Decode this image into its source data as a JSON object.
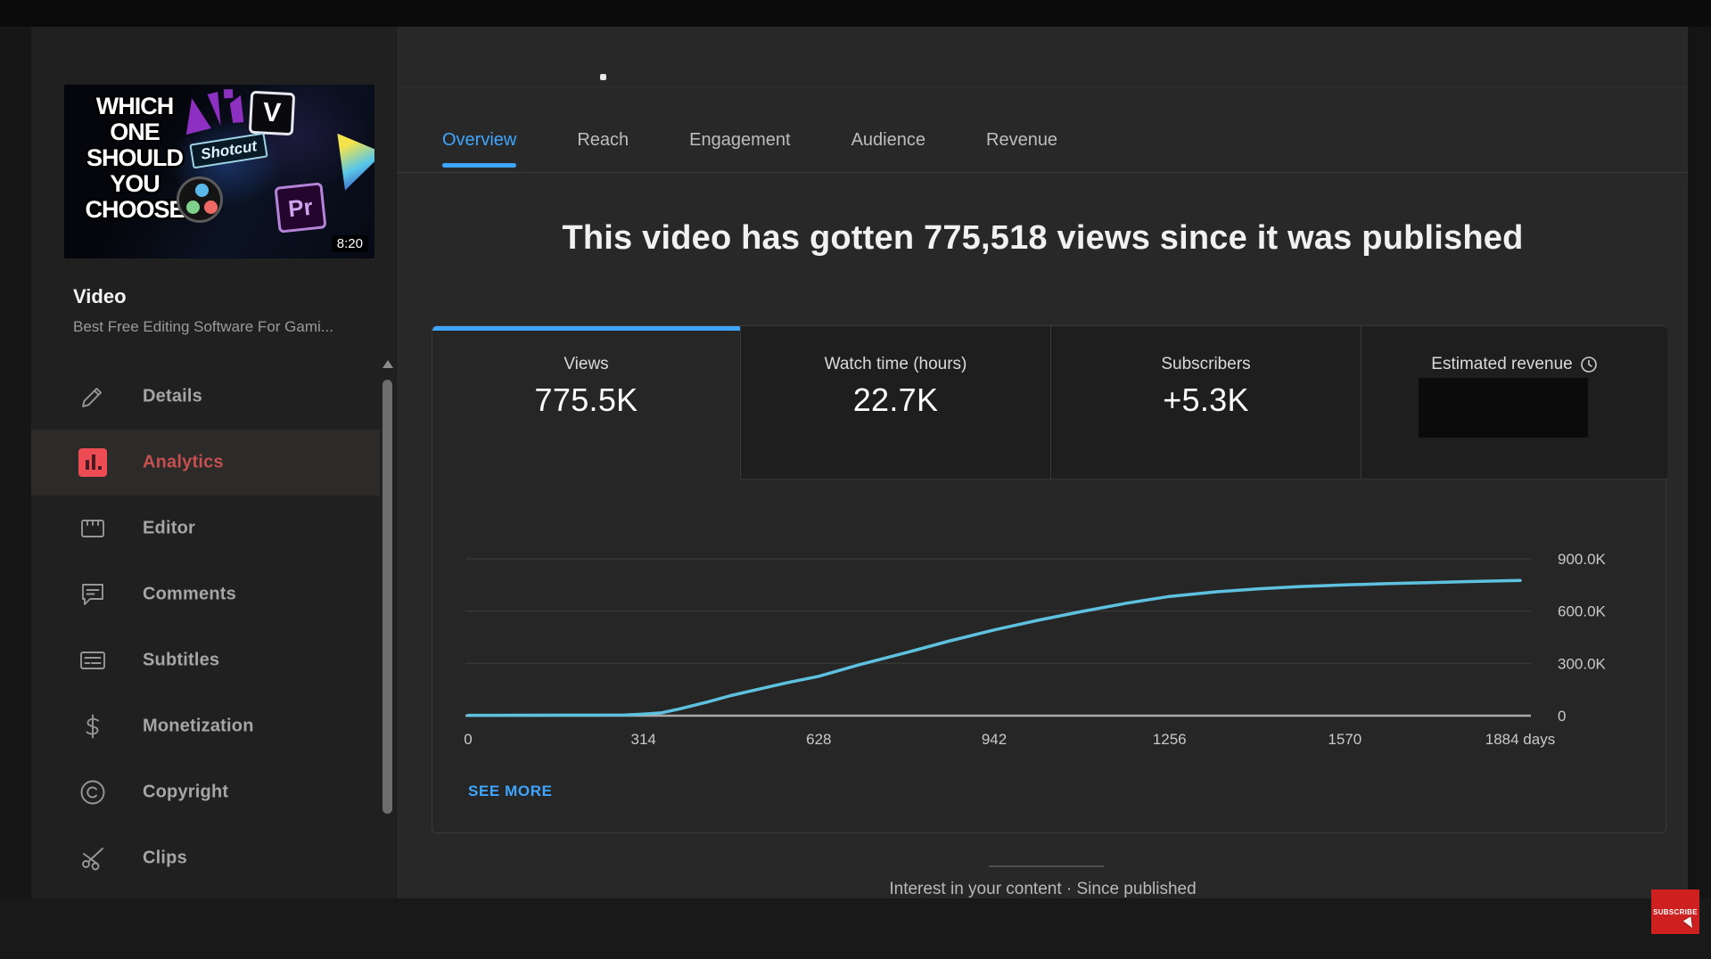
{
  "colors": {
    "accent_blue": "#3ea6ff",
    "chart_line": "#5ec1e0",
    "analytics_icon_red": "#ee4c55",
    "active_item_red": "#c4504f",
    "subscribe_red": "#cf2020",
    "panel_bg": "#262626",
    "main_bg": "#282828",
    "sidebar_bg": "#212020"
  },
  "sidebar": {
    "thumbnail": {
      "text_lines": [
        "WHICH",
        "ONE",
        "SHOULD",
        "YOU",
        "CHOOSE"
      ],
      "shotcut_label": "Shotcut",
      "v_logo_label": "V",
      "premiere_label": "Pr",
      "duration": "8:20"
    },
    "section_label": "Video",
    "video_title": "Best Free Editing Software For Gami...",
    "items": [
      {
        "label": "Details",
        "icon": "pencil-icon",
        "active": false
      },
      {
        "label": "Analytics",
        "icon": "analytics-icon",
        "active": true
      },
      {
        "label": "Editor",
        "icon": "editor-icon",
        "active": false
      },
      {
        "label": "Comments",
        "icon": "comments-icon",
        "active": false
      },
      {
        "label": "Subtitles",
        "icon": "subtitles-icon",
        "active": false
      },
      {
        "label": "Monetization",
        "icon": "monetization-icon",
        "active": false
      },
      {
        "label": "Copyright",
        "icon": "copyright-icon",
        "active": false
      },
      {
        "label": "Clips",
        "icon": "clips-icon",
        "active": false
      }
    ]
  },
  "main": {
    "tabs": [
      {
        "label": "Overview",
        "active": true
      },
      {
        "label": "Reach",
        "active": false
      },
      {
        "label": "Engagement",
        "active": false
      },
      {
        "label": "Audience",
        "active": false
      },
      {
        "label": "Revenue",
        "active": false
      }
    ],
    "headline": "This video has gotten 775,518 views since it was published",
    "metric_cards": [
      {
        "label": "Views",
        "value": "775.5K",
        "selected": true,
        "redacted": false
      },
      {
        "label": "Watch time (hours)",
        "value": "22.7K",
        "selected": false,
        "redacted": false
      },
      {
        "label": "Subscribers",
        "value": "+5.3K",
        "selected": false,
        "redacted": false
      },
      {
        "label": "Estimated revenue",
        "value": "",
        "selected": false,
        "redacted": true,
        "icon": "clock-icon"
      }
    ],
    "see_more_label": "SEE MORE",
    "footer_text": "Interest in your content · Since published"
  },
  "overlay": {
    "subscribe_label": "SUBSCRIBE"
  },
  "chart_data": {
    "type": "line",
    "title": "Views since published",
    "xlabel": "days",
    "ylabel": "Views",
    "legend": "none",
    "grid": true,
    "x_range": [
      0,
      1884
    ],
    "y_range": [
      0,
      960000
    ],
    "x_ticks": [
      {
        "v": 0,
        "label": "0"
      },
      {
        "v": 314,
        "label": "314"
      },
      {
        "v": 628,
        "label": "628"
      },
      {
        "v": 942,
        "label": "942"
      },
      {
        "v": 1256,
        "label": "1256"
      },
      {
        "v": 1570,
        "label": "1570"
      },
      {
        "v": 1884,
        "label": "1884 days"
      }
    ],
    "y_ticks": [
      {
        "v": 0,
        "label": "0"
      },
      {
        "v": 300000,
        "label": "300.0K"
      },
      {
        "v": 600000,
        "label": "600.0K"
      },
      {
        "v": 900000,
        "label": "900.0K"
      }
    ],
    "series": [
      {
        "name": "Views",
        "points": [
          [
            0,
            2000
          ],
          [
            100,
            2500
          ],
          [
            200,
            3000
          ],
          [
            280,
            4000
          ],
          [
            314,
            9000
          ],
          [
            345,
            16000
          ],
          [
            380,
            40000
          ],
          [
            430,
            80000
          ],
          [
            470,
            115000
          ],
          [
            520,
            152000
          ],
          [
            570,
            188000
          ],
          [
            628,
            226000
          ],
          [
            700,
            292000
          ],
          [
            785,
            362000
          ],
          [
            860,
            427000
          ],
          [
            942,
            492000
          ],
          [
            1020,
            547000
          ],
          [
            1099,
            598000
          ],
          [
            1180,
            646000
          ],
          [
            1256,
            684000
          ],
          [
            1340,
            711000
          ],
          [
            1413,
            727000
          ],
          [
            1490,
            741000
          ],
          [
            1570,
            750000
          ],
          [
            1650,
            758000
          ],
          [
            1727,
            764000
          ],
          [
            1800,
            770000
          ],
          [
            1884,
            775518
          ]
        ]
      }
    ]
  }
}
